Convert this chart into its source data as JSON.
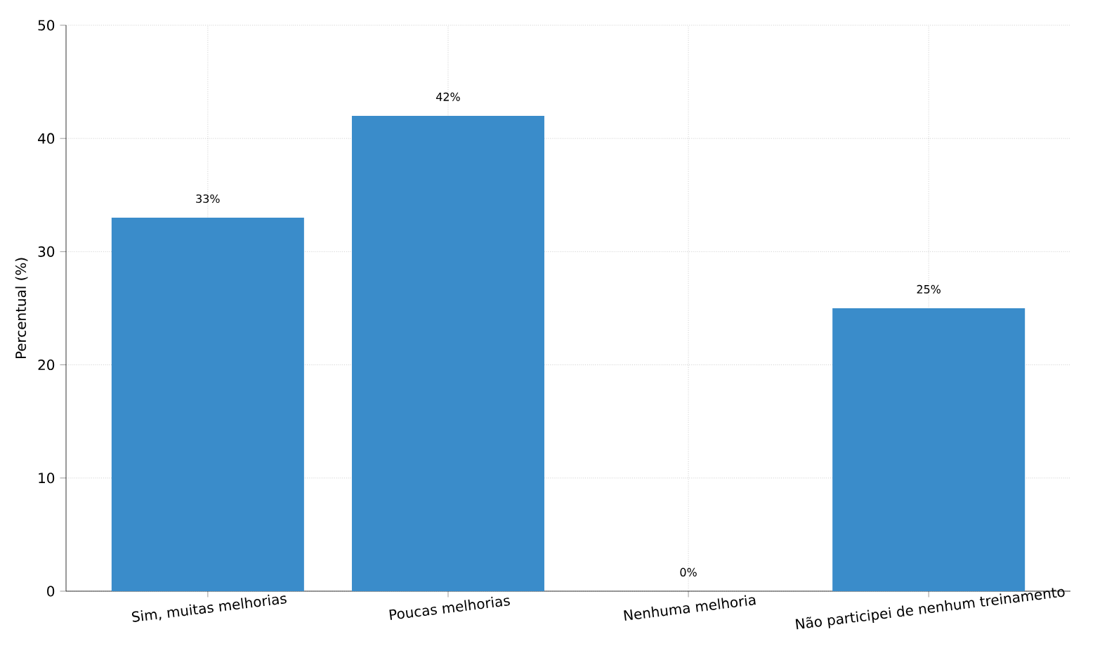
{
  "chart_data": {
    "type": "bar",
    "ylabel": "Percentual (%)",
    "categories": [
      "Sim, muitas melhorias",
      "Poucas melhorias",
      "Nenhuma melhoria",
      "Não participei de nenhum treinamento"
    ],
    "values": [
      33,
      42,
      0,
      25
    ],
    "value_labels": [
      "33%",
      "42%",
      "0%",
      "25%"
    ],
    "color": "#3a8cca",
    "ylim": [
      0,
      50
    ],
    "yticks": [
      0,
      10,
      20,
      30,
      40,
      50
    ],
    "grid": true
  }
}
